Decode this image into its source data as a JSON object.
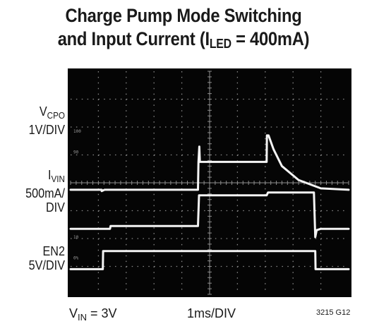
{
  "chart_data": {
    "type": "line",
    "title_line1": "Charge Pump Mode Switching",
    "title_line2_pre": "and Input Current (I",
    "title_line2_sub": "LED",
    "title_line2_post": " = 400mA)",
    "xlabel": "1ms/DIV",
    "condition_pre": "V",
    "condition_sub": "IN",
    "condition_post": " = 3V",
    "figure_id": "3215 G12",
    "graticule_marks": [
      "100",
      "90",
      "10",
      "0%"
    ],
    "x_divisions": 10,
    "y_divisions": 8,
    "series": [
      {
        "name": "VCPO",
        "label_main": "V",
        "label_sub": "CPO",
        "label_scale": "1V/DIV",
        "x": [
          0,
          1.12,
          1.12,
          1.22,
          1.24,
          1.45,
          1.46,
          4.58,
          4.6,
          4.63,
          4.65,
          5.45,
          7.05,
          7.06,
          7.12,
          7.3,
          7.6,
          8.2,
          9.0,
          10.0
        ],
        "y": [
          -0.25,
          -0.25,
          -0.3,
          -0.25,
          -0.25,
          -0.25,
          -0.25,
          -0.25,
          0.75,
          1.3,
          0.75,
          0.75,
          0.75,
          1.7,
          1.7,
          1.2,
          0.6,
          0.1,
          -0.2,
          -0.25
        ]
      },
      {
        "name": "IVIN",
        "label_main": "I",
        "label_sub": "VIN",
        "label_scale_1": "500mA/",
        "label_scale_2": "DIV",
        "x": [
          0,
          1.42,
          1.44,
          4.58,
          4.62,
          4.7,
          7.05,
          7.1,
          8.75,
          8.8,
          8.85,
          9.0,
          10.0
        ],
        "y": [
          -1.65,
          -1.65,
          -1.55,
          -1.55,
          -0.45,
          -0.45,
          -0.45,
          -0.35,
          -0.35,
          -1.95,
          -1.7,
          -1.65,
          -1.65
        ]
      },
      {
        "name": "EN2",
        "label_main": "EN2",
        "label_scale": "5V/DIV",
        "x": [
          0,
          1.16,
          1.17,
          8.8,
          8.81,
          10.0
        ],
        "y": [
          -3.1,
          -3.1,
          -2.45,
          -2.45,
          -3.1,
          -3.1
        ]
      }
    ]
  }
}
